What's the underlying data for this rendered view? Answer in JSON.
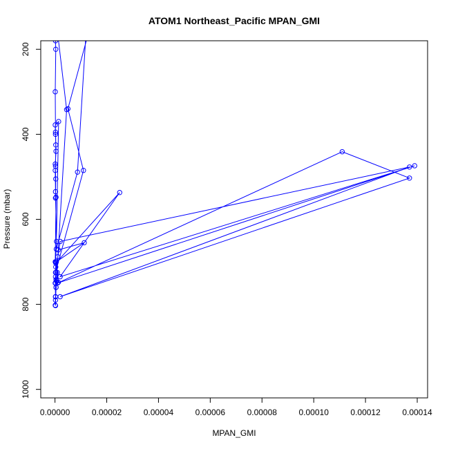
{
  "chart_data": {
    "type": "line",
    "title": "ATOM1 Northeast_Pacific MPAN_GMI",
    "xlabel": "MPAN_GMI",
    "ylabel": "Pressure (mbar)",
    "xlim": [
      -5.5e-06,
      0.000144
    ],
    "ylim": [
      1020,
      180
    ],
    "y_reversed": true,
    "xticks": [
      0,
      2e-05,
      4e-05,
      6e-05,
      8e-05,
      0.0001,
      0.00012,
      0.00014
    ],
    "xtick_labels": [
      "0.00000",
      "0.00002",
      "0.00004",
      "0.00006",
      "0.00008",
      "0.00010",
      "0.00012",
      "0.00014"
    ],
    "yticks": [
      200,
      400,
      600,
      800,
      1000
    ],
    "ytick_labels": [
      "200",
      "400",
      "600",
      "800",
      "1000"
    ],
    "color": "#0000ff",
    "series": [
      {
        "points": [
          [
            2e-07,
            180
          ],
          [
            3e-07,
            200
          ],
          [
            1e-07,
            300
          ],
          [
            2e-07,
            395
          ],
          [
            4e-07,
            440
          ],
          [
            1e-07,
            470
          ],
          [
            3e-07,
            505
          ],
          [
            2e-07,
            550
          ],
          [
            6e-07,
            652
          ],
          [
            2e-07,
            700
          ],
          [
            4e-07,
            725
          ],
          [
            1e-07,
            750
          ],
          [
            2e-07,
            782
          ],
          [
            1e-07,
            802
          ],
          [
            2e-07,
            790
          ],
          [
            4e-07,
            760
          ],
          [
            6e-07,
            745
          ],
          [
            1.3e-06,
            672
          ],
          [
            1.13e-05,
            655
          ],
          [
            5e-07,
            700
          ],
          [
            1e-07,
            750
          ],
          [
            3e-07,
            703
          ],
          [
            2.5e-05,
            537
          ],
          [
            2e-06,
            735
          ],
          [
            0.000139,
            474
          ],
          [
            1e-06,
            750
          ],
          [
            0.000111,
            441
          ],
          [
            0.000137,
            503
          ],
          [
            2e-06,
            782
          ],
          [
            0.000137,
            477
          ],
          [
            2e-06,
            652
          ],
          [
            1.1e-06,
            688
          ],
          [
            2e-07,
            725
          ],
          [
            1.1e-05,
            485
          ],
          [
            5e-06,
            340
          ],
          [
            1.3e-05,
            160
          ],
          [
            1.2e-05,
            160
          ],
          [
            8.7e-06,
            489
          ],
          [
            5e-07,
            670
          ],
          [
            1.4e-06,
            370
          ],
          [
            1e-07,
            378
          ],
          [
            2e-07,
            400
          ],
          [
            3e-07,
            425
          ],
          [
            2e-07,
            475
          ],
          [
            1e-07,
            485
          ],
          [
            2e-07,
            535
          ],
          [
            4e-07,
            548
          ],
          [
            1e-07,
            700
          ],
          [
            3e-07,
            712
          ],
          [
            2e-07,
            735
          ],
          [
            4e-07,
            742
          ],
          [
            2e-07,
            750
          ],
          [
            1.3e-06,
            748
          ],
          [
            9e-07,
            725
          ],
          [
            2e-07,
            782
          ],
          [
            2e-07,
            803
          ],
          [
            4e-07,
            760
          ],
          [
            4.5e-06,
            342
          ],
          [
            2e-07,
            120
          ]
        ]
      }
    ]
  }
}
